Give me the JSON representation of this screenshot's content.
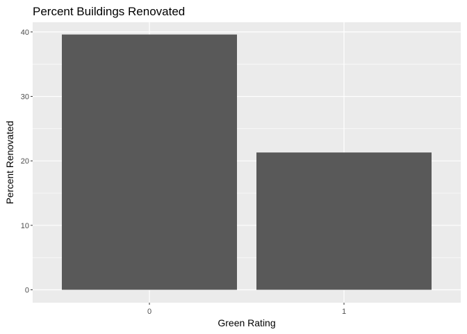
{
  "chart_data": {
    "type": "bar",
    "title": "Percent Buildings Renovated",
    "xlabel": "Green Rating",
    "ylabel": "Percent Renovated",
    "categories": [
      "0",
      "1"
    ],
    "values": [
      39.6,
      21.3
    ],
    "ylim": [
      -2,
      41.5
    ],
    "yticks": [
      0,
      10,
      20,
      30,
      40
    ],
    "ytick_labels": [
      "0",
      "10",
      "20",
      "30",
      "40"
    ],
    "grid": true,
    "legend": "none",
    "colors": {
      "bar": "#595959",
      "panel": "#ebebeb",
      "grid": "#ffffff",
      "tick_text": "#4d4d4d"
    }
  }
}
